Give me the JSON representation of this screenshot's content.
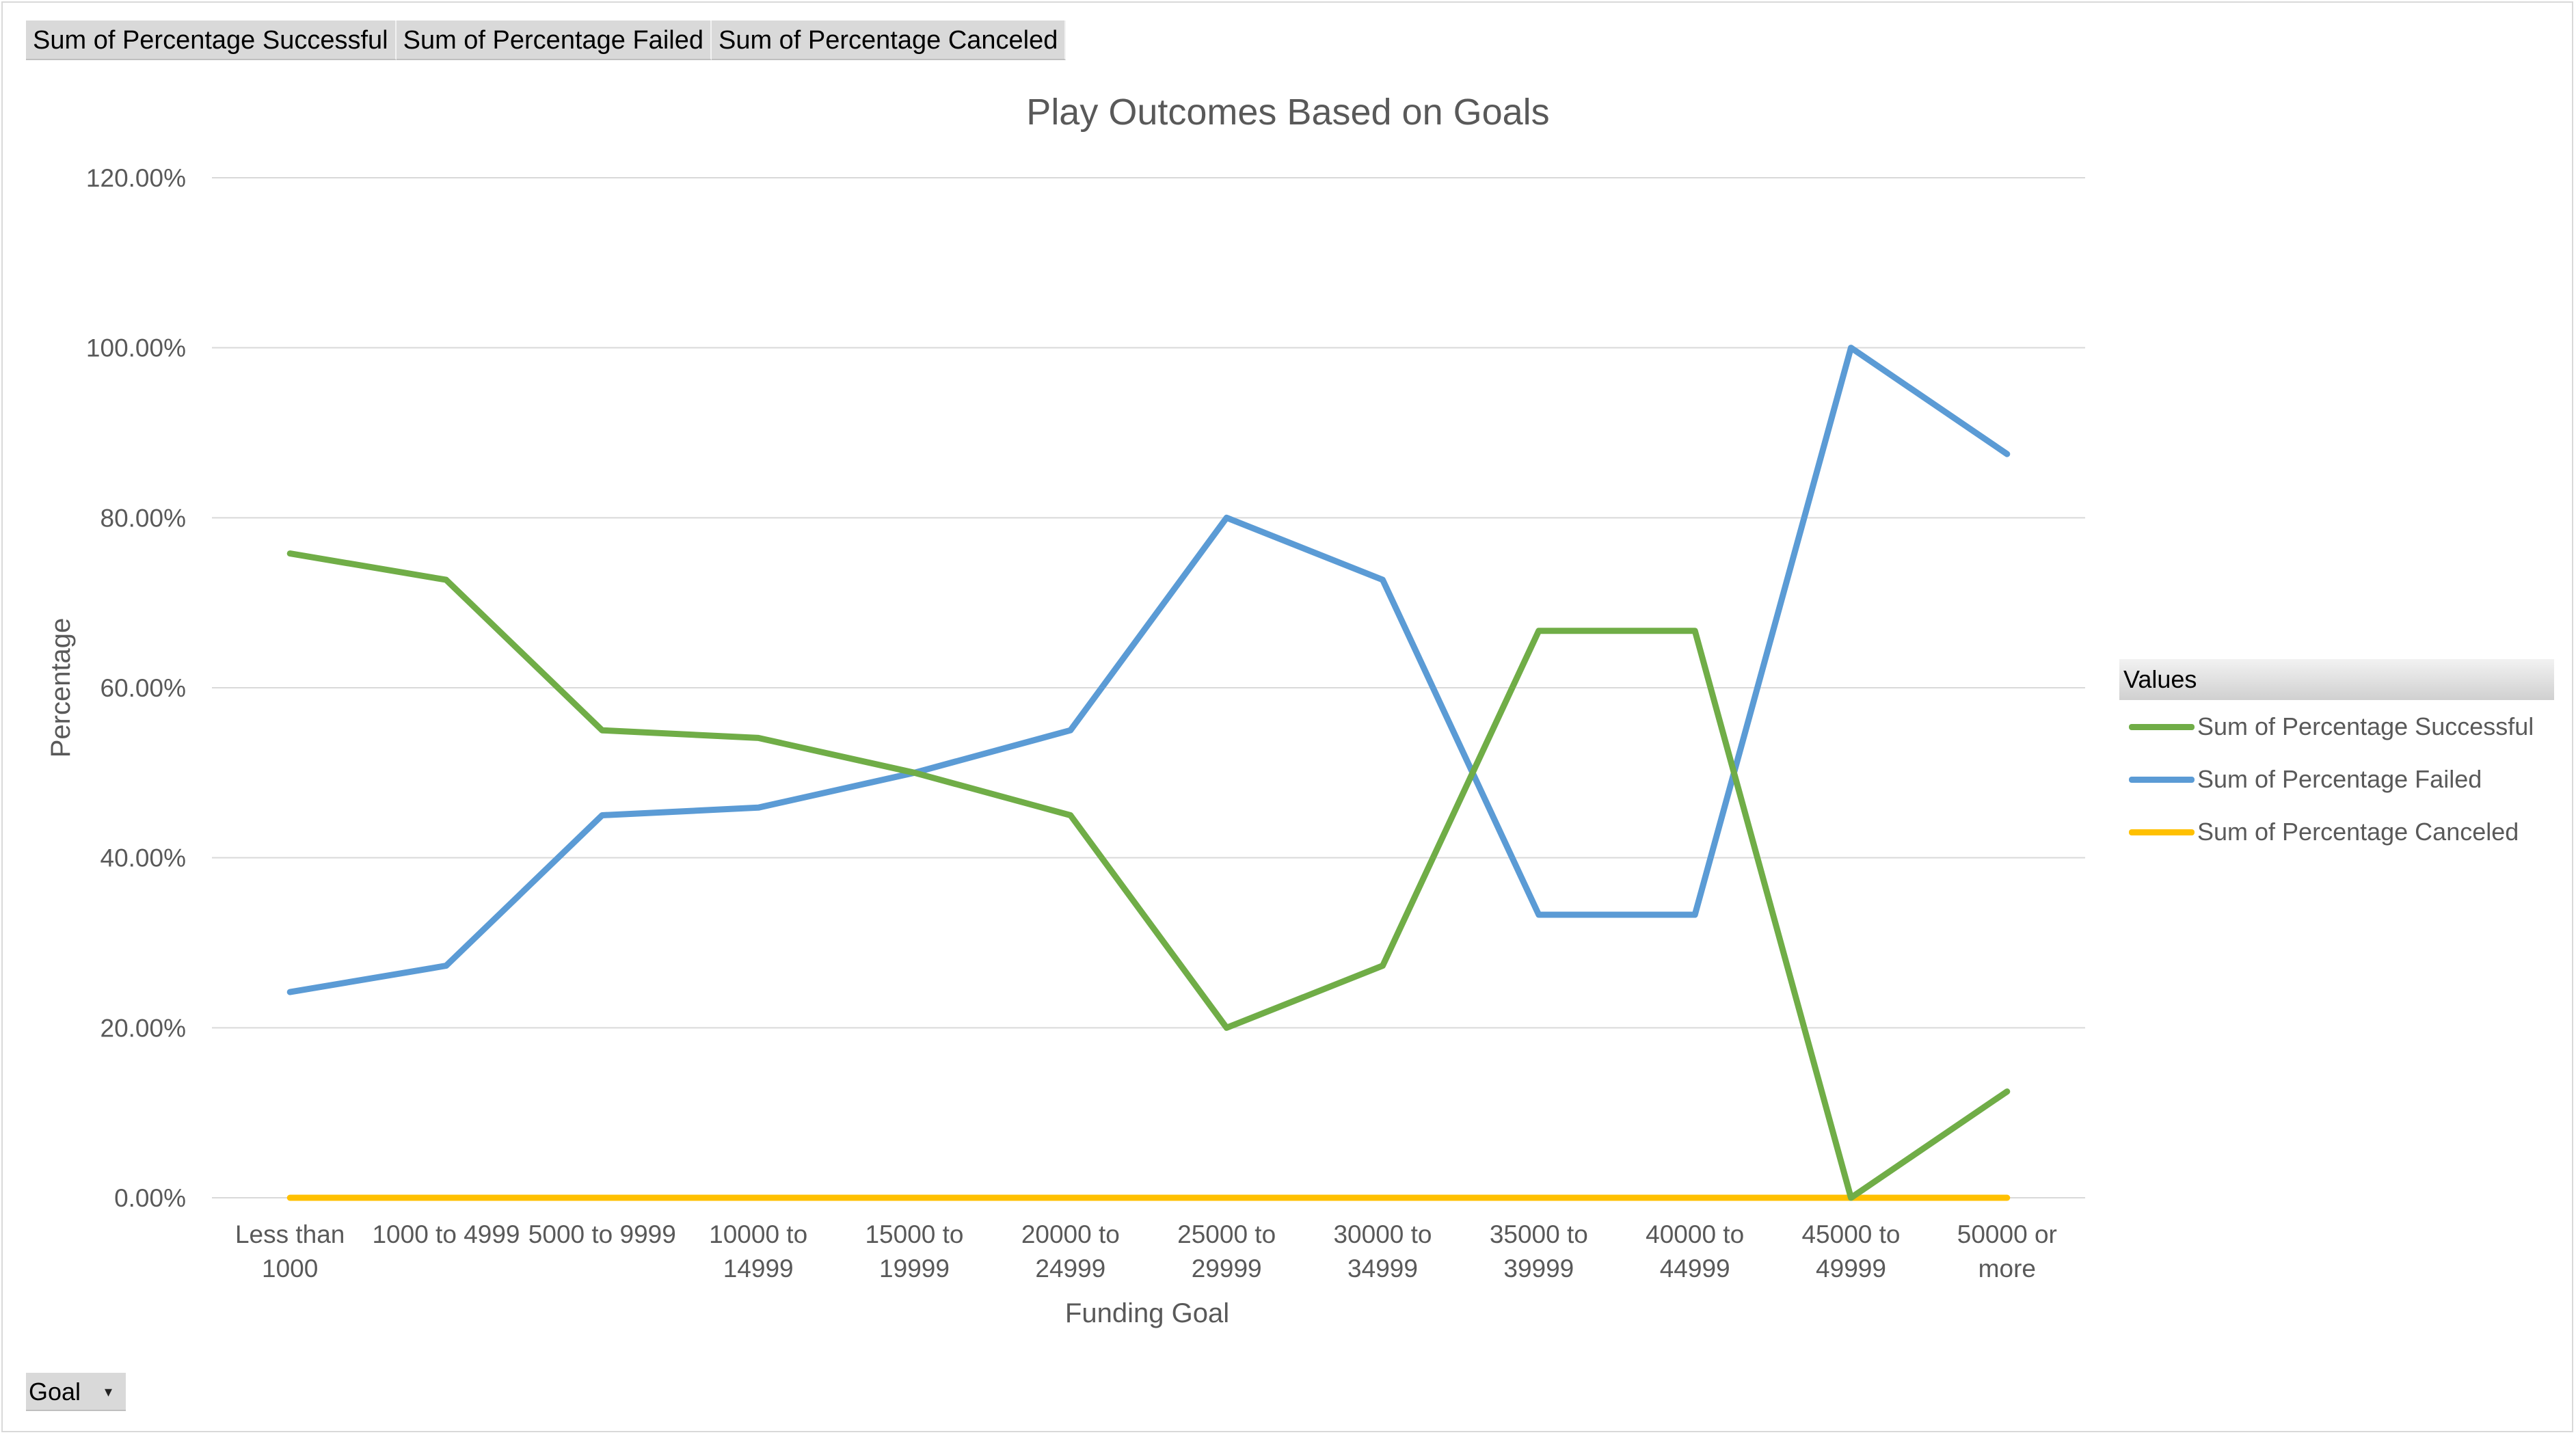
{
  "field_buttons": [
    "Sum of Percentage  Successful",
    "Sum of Percentage  Failed",
    "Sum of Percentage  Canceled"
  ],
  "filter_button": {
    "label": "Goal",
    "icon": "dropdown-arrow-icon"
  },
  "legend": {
    "title": "Values",
    "items": [
      {
        "label": "Sum of Percentage Successful",
        "color": "#70ad47"
      },
      {
        "label": "Sum of Percentage Failed",
        "color": "#5b9bd5"
      },
      {
        "label": "Sum of Percentage Canceled",
        "color": "#ffc000"
      }
    ]
  },
  "chart_data": {
    "type": "line",
    "title": "Play Outcomes  Based on Goals",
    "xlabel": "Funding Goal",
    "ylabel": "Percentage",
    "ylim": [
      0,
      1.2
    ],
    "yticks": [
      "0.00%",
      "20.00%",
      "40.00%",
      "60.00%",
      "80.00%",
      "100.00%",
      "120.00%"
    ],
    "grid": true,
    "legend_position": "right",
    "categories": [
      [
        "Less than",
        "1000"
      ],
      [
        "1000 to 4999"
      ],
      [
        "5000 to 9999"
      ],
      [
        "10000 to",
        "14999"
      ],
      [
        "15000 to",
        "19999"
      ],
      [
        "20000 to",
        "24999"
      ],
      [
        "25000 to",
        "29999"
      ],
      [
        "30000 to",
        "34999"
      ],
      [
        "35000 to",
        "39999"
      ],
      [
        "40000 to",
        "44999"
      ],
      [
        "45000 to",
        "49999"
      ],
      [
        "50000 or",
        "more"
      ]
    ],
    "series": [
      {
        "name": "Sum of Percentage Successful",
        "color": "#70ad47",
        "values": [
          0.758,
          0.727,
          0.55,
          0.541,
          0.5,
          0.45,
          0.2,
          0.273,
          0.667,
          0.667,
          0.0,
          0.125
        ]
      },
      {
        "name": "Sum of Percentage Failed",
        "color": "#5b9bd5",
        "values": [
          0.242,
          0.273,
          0.45,
          0.459,
          0.5,
          0.55,
          0.8,
          0.727,
          0.333,
          0.333,
          1.0,
          0.875
        ]
      },
      {
        "name": "Sum of Percentage Canceled",
        "color": "#ffc000",
        "values": [
          0,
          0,
          0,
          0,
          0,
          0,
          0,
          0,
          0,
          0,
          0,
          0
        ]
      }
    ]
  }
}
